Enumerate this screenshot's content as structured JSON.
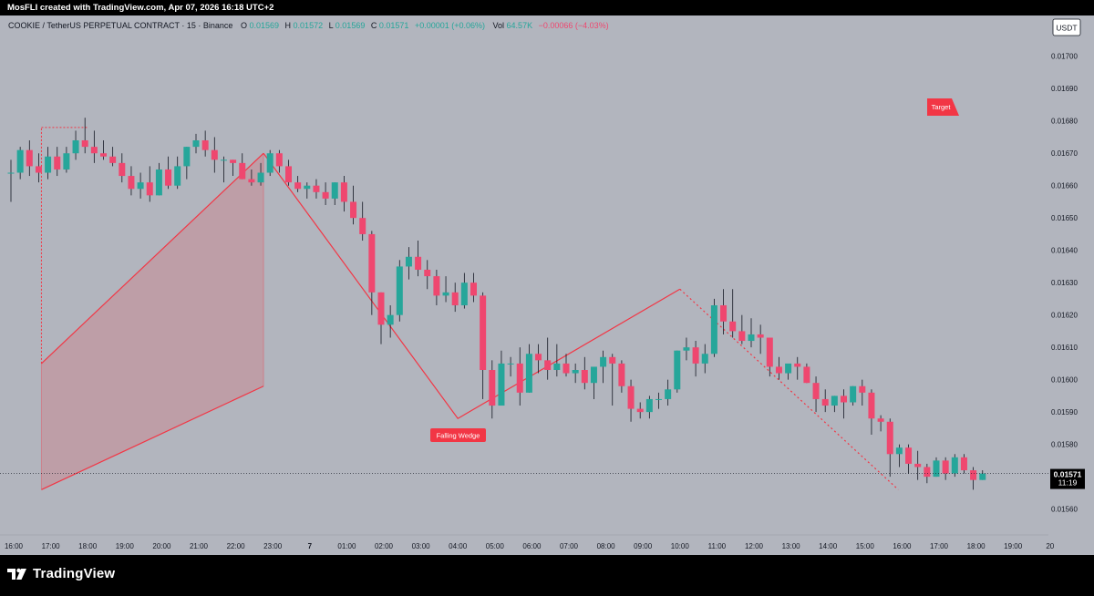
{
  "header": {
    "caption": "MosFLI created with TradingView.com, Apr 07, 2026 16:18 UTC+2"
  },
  "legend": {
    "symbol": "COOKIE / TetherUS PERPETUAL CONTRACT · 15 · Binance",
    "o_label": "O",
    "o_value": "0.01569",
    "h_label": "H",
    "h_value": "0.01572",
    "l_label": "L",
    "l_value": "0.01569",
    "c_label": "C",
    "c_value": "0.01571",
    "change": "+0.00001 (+0.06%)",
    "vol_label": "Vol",
    "vol_value": "64.57K",
    "vol_change": "−0.00066 (−4.03%)"
  },
  "currency_badge": "USDT",
  "price_label": {
    "value": "0.01571",
    "countdown": "11:19"
  },
  "annotations": {
    "pattern_label": "Falling Wedge",
    "target_label": "Target"
  },
  "footer": {
    "brand": "TradingView"
  },
  "colors": {
    "bull": "#26a69a",
    "bear": "#ef476f",
    "line": "#f23645",
    "background": "#b2b5be",
    "wedge_fill": "rgba(242,54,69,0.18)"
  },
  "chart_data": {
    "type": "candlestick",
    "ylim": [
      0.01552,
      0.01705
    ],
    "y_ticks": [
      "0.01700",
      "0.01690",
      "0.01680",
      "0.01670",
      "0.01660",
      "0.01650",
      "0.01640",
      "0.01630",
      "0.01620",
      "0.01610",
      "0.01600",
      "0.01590",
      "0.01580",
      "0.01570",
      "0.01560"
    ],
    "x_ticks": [
      "16:00",
      "17:00",
      "18:00",
      "19:00",
      "20:00",
      "21:00",
      "22:00",
      "23:00",
      "7",
      "01:00",
      "02:00",
      "03:00",
      "04:00",
      "05:00",
      "06:00",
      "07:00",
      "08:00",
      "09:00",
      "10:00",
      "11:00",
      "12:00",
      "13:00",
      "14:00",
      "15:00",
      "16:00",
      "17:00",
      "18:00",
      "19:00",
      "20"
    ],
    "candles": [
      [
        0.01664,
        0.01668,
        0.01655,
        0.01664
      ],
      [
        0.01664,
        0.01672,
        0.01662,
        0.01671
      ],
      [
        0.01671,
        0.01674,
        0.01663,
        0.01666
      ],
      [
        0.01666,
        0.0167,
        0.01661,
        0.01664
      ],
      [
        0.01664,
        0.01672,
        0.01662,
        0.01669
      ],
      [
        0.01669,
        0.01672,
        0.01663,
        0.01665
      ],
      [
        0.01665,
        0.01672,
        0.01664,
        0.0167
      ],
      [
        0.0167,
        0.01677,
        0.01668,
        0.01674
      ],
      [
        0.01674,
        0.01681,
        0.0167,
        0.01672
      ],
      [
        0.01672,
        0.01677,
        0.01667,
        0.0167
      ],
      [
        0.0167,
        0.01674,
        0.01668,
        0.01669
      ],
      [
        0.01669,
        0.01672,
        0.01666,
        0.01667
      ],
      [
        0.01667,
        0.0167,
        0.01661,
        0.01663
      ],
      [
        0.01663,
        0.01666,
        0.01657,
        0.01659
      ],
      [
        0.01659,
        0.01664,
        0.01656,
        0.01661
      ],
      [
        0.01661,
        0.01666,
        0.01655,
        0.01657
      ],
      [
        0.01657,
        0.01667,
        0.01657,
        0.01665
      ],
      [
        0.01665,
        0.01669,
        0.01659,
        0.0166
      ],
      [
        0.0166,
        0.01669,
        0.01659,
        0.01666
      ],
      [
        0.01666,
        0.01672,
        0.01662,
        0.01672
      ],
      [
        0.01672,
        0.01676,
        0.0167,
        0.01674
      ],
      [
        0.01674,
        0.01677,
        0.01669,
        0.01671
      ],
      [
        0.01671,
        0.01675,
        0.01664,
        0.01668
      ],
      [
        0.01668,
        0.01669,
        0.01661,
        0.01668
      ],
      [
        0.01668,
        0.01668,
        0.01663,
        0.01667
      ],
      [
        0.01667,
        0.0167,
        0.01662,
        0.01662
      ],
      [
        0.01662,
        0.01665,
        0.0166,
        0.01661
      ],
      [
        0.01661,
        0.01667,
        0.0166,
        0.01664
      ],
      [
        0.01664,
        0.01671,
        0.01663,
        0.0167
      ],
      [
        0.0167,
        0.01671,
        0.01664,
        0.01666
      ],
      [
        0.01666,
        0.01668,
        0.0166,
        0.01661
      ],
      [
        0.01661,
        0.01663,
        0.01658,
        0.01659
      ],
      [
        0.01659,
        0.01661,
        0.01656,
        0.0166
      ],
      [
        0.0166,
        0.01662,
        0.01656,
        0.01658
      ],
      [
        0.01658,
        0.01661,
        0.01654,
        0.01656
      ],
      [
        0.01656,
        0.01661,
        0.01654,
        0.01661
      ],
      [
        0.01661,
        0.01663,
        0.01652,
        0.01655
      ],
      [
        0.01655,
        0.0166,
        0.01648,
        0.0165
      ],
      [
        0.0165,
        0.01655,
        0.01643,
        0.01645
      ],
      [
        0.01645,
        0.01646,
        0.0162,
        0.01627
      ],
      [
        0.01627,
        0.01627,
        0.01611,
        0.01617
      ],
      [
        0.01617,
        0.01623,
        0.01613,
        0.0162
      ],
      [
        0.0162,
        0.01637,
        0.01618,
        0.01635
      ],
      [
        0.01635,
        0.01641,
        0.01631,
        0.01638
      ],
      [
        0.01638,
        0.01643,
        0.01632,
        0.01634
      ],
      [
        0.01634,
        0.01637,
        0.01628,
        0.01632
      ],
      [
        0.01632,
        0.01634,
        0.01623,
        0.01626
      ],
      [
        0.01626,
        0.01632,
        0.01624,
        0.01627
      ],
      [
        0.01627,
        0.0163,
        0.01621,
        0.01623
      ],
      [
        0.01623,
        0.01633,
        0.01622,
        0.0163
      ],
      [
        0.0163,
        0.01633,
        0.01624,
        0.01626
      ],
      [
        0.01626,
        0.01627,
        0.01594,
        0.01603
      ],
      [
        0.01603,
        0.01606,
        0.01588,
        0.01592
      ],
      [
        0.01592,
        0.01609,
        0.01592,
        0.01605
      ],
      [
        0.01605,
        0.01607,
        0.01601,
        0.01605
      ],
      [
        0.01605,
        0.0161,
        0.01592,
        0.01596
      ],
      [
        0.01596,
        0.01611,
        0.01596,
        0.01608
      ],
      [
        0.01608,
        0.01611,
        0.01602,
        0.01606
      ],
      [
        0.01606,
        0.01613,
        0.016,
        0.01603
      ],
      [
        0.01603,
        0.01611,
        0.01601,
        0.01605
      ],
      [
        0.01605,
        0.01608,
        0.01601,
        0.01602
      ],
      [
        0.01602,
        0.01605,
        0.01599,
        0.01603
      ],
      [
        0.01603,
        0.01607,
        0.01597,
        0.01599
      ],
      [
        0.01599,
        0.01604,
        0.01594,
        0.01604
      ],
      [
        0.01604,
        0.01609,
        0.01599,
        0.01607
      ],
      [
        0.01607,
        0.01608,
        0.01592,
        0.01605
      ],
      [
        0.01605,
        0.01606,
        0.01596,
        0.01598
      ],
      [
        0.01598,
        0.016,
        0.01587,
        0.01591
      ],
      [
        0.01591,
        0.01593,
        0.01588,
        0.0159
      ],
      [
        0.0159,
        0.01595,
        0.01588,
        0.01594
      ],
      [
        0.01594,
        0.01596,
        0.01591,
        0.01594
      ],
      [
        0.01594,
        0.016,
        0.01592,
        0.01597
      ],
      [
        0.01597,
        0.01609,
        0.01596,
        0.01609
      ],
      [
        0.01609,
        0.01613,
        0.01606,
        0.0161
      ],
      [
        0.0161,
        0.01612,
        0.01601,
        0.01605
      ],
      [
        0.01605,
        0.01611,
        0.01602,
        0.01608
      ],
      [
        0.01608,
        0.01625,
        0.01607,
        0.01623
      ],
      [
        0.01623,
        0.01628,
        0.01614,
        0.01618
      ],
      [
        0.01618,
        0.01628,
        0.01613,
        0.01615
      ],
      [
        0.01615,
        0.0162,
        0.01611,
        0.01612
      ],
      [
        0.01612,
        0.01619,
        0.0161,
        0.01614
      ],
      [
        0.01614,
        0.01617,
        0.01608,
        0.01613
      ],
      [
        0.01613,
        0.01613,
        0.01601,
        0.01604
      ],
      [
        0.01604,
        0.01607,
        0.016,
        0.01602
      ],
      [
        0.01602,
        0.01604,
        0.016,
        0.01605
      ],
      [
        0.01605,
        0.01607,
        0.016,
        0.01604
      ],
      [
        0.01604,
        0.01605,
        0.01599,
        0.01599
      ],
      [
        0.01599,
        0.01601,
        0.0159,
        0.01594
      ],
      [
        0.01594,
        0.01597,
        0.0159,
        0.01592
      ],
      [
        0.01592,
        0.01595,
        0.0159,
        0.01595
      ],
      [
        0.01595,
        0.01597,
        0.01588,
        0.01593
      ],
      [
        0.01593,
        0.01598,
        0.01592,
        0.01598
      ],
      [
        0.01598,
        0.016,
        0.01592,
        0.01596
      ],
      [
        0.01596,
        0.01597,
        0.01583,
        0.01588
      ],
      [
        0.01588,
        0.01589,
        0.01584,
        0.01587
      ],
      [
        0.01587,
        0.01588,
        0.0157,
        0.01577
      ],
      [
        0.01577,
        0.0158,
        0.01573,
        0.01579
      ],
      [
        0.01579,
        0.0158,
        0.01571,
        0.01574
      ],
      [
        0.01574,
        0.01578,
        0.01569,
        0.01573
      ],
      [
        0.01573,
        0.01574,
        0.01568,
        0.0157
      ],
      [
        0.0157,
        0.01576,
        0.0157,
        0.01575
      ],
      [
        0.01575,
        0.01576,
        0.01569,
        0.01571
      ],
      [
        0.01571,
        0.01577,
        0.0157,
        0.01576
      ],
      [
        0.01576,
        0.01577,
        0.01571,
        0.01572
      ],
      [
        0.01572,
        0.01573,
        0.01566,
        0.01569
      ],
      [
        0.01569,
        0.01572,
        0.01569,
        0.01571
      ]
    ],
    "wedge": {
      "upper_line": [
        [
          22.75,
          0.0167
        ],
        [
          16.75,
          0.01605
        ]
      ],
      "lower_line": [
        [
          22.75,
          0.01598
        ],
        [
          16.75,
          0.01566
        ]
      ],
      "zigzag": [
        [
          22.75,
          0.0167
        ],
        [
          4.0,
          0.01588
        ],
        [
          10.0,
          0.01628
        ],
        [
          15.9,
          0.01566
        ]
      ]
    },
    "target_price": 0.01678,
    "last_price": 0.01571
  }
}
